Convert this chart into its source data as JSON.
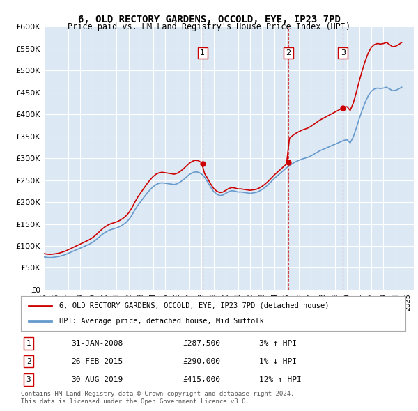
{
  "title": "6, OLD RECTORY GARDENS, OCCOLD, EYE, IP23 7PD",
  "subtitle": "Price paid vs. HM Land Registry's House Price Index (HPI)",
  "ylabel": "",
  "ylim": [
    0,
    600000
  ],
  "yticks": [
    0,
    50000,
    100000,
    150000,
    200000,
    250000,
    300000,
    350000,
    400000,
    450000,
    500000,
    550000,
    600000
  ],
  "ytick_labels": [
    "£0",
    "£50K",
    "£100K",
    "£150K",
    "£200K",
    "£250K",
    "£300K",
    "£350K",
    "£400K",
    "£450K",
    "£500K",
    "£550K",
    "£600K"
  ],
  "xlim_start": 1995.0,
  "xlim_end": 2025.5,
  "bg_color": "#dce9f5",
  "plot_bg_color": "#dce9f5",
  "grid_color": "#ffffff",
  "hpi_color": "#6699cc",
  "price_color": "#cc0000",
  "sale_marker_color": "#cc0000",
  "legend_house_label": "6, OLD RECTORY GARDENS, OCCOLD, EYE, IP23 7PD (detached house)",
  "legend_hpi_label": "HPI: Average price, detached house, Mid Suffolk",
  "sales": [
    {
      "num": 1,
      "date_x": 2008.08,
      "price": 287500,
      "label": "31-JAN-2008",
      "price_str": "£287,500",
      "hpi_pct": "3%",
      "hpi_dir": "↑"
    },
    {
      "num": 2,
      "date_x": 2015.16,
      "price": 290000,
      "label": "26-FEB-2015",
      "price_str": "£290,000",
      "hpi_pct": "1%",
      "hpi_dir": "↓"
    },
    {
      "num": 3,
      "date_x": 2019.66,
      "price": 415000,
      "label": "30-AUG-2019",
      "price_str": "£415,000",
      "hpi_pct": "12%",
      "hpi_dir": "↑"
    }
  ],
  "footer_line1": "Contains HM Land Registry data © Crown copyright and database right 2024.",
  "footer_line2": "This data is licensed under the Open Government Licence v3.0.",
  "hpi_data_x": [
    1995.0,
    1995.25,
    1995.5,
    1995.75,
    1996.0,
    1996.25,
    1996.5,
    1996.75,
    1997.0,
    1997.25,
    1997.5,
    1997.75,
    1998.0,
    1998.25,
    1998.5,
    1998.75,
    1999.0,
    1999.25,
    1999.5,
    1999.75,
    2000.0,
    2000.25,
    2000.5,
    2000.75,
    2001.0,
    2001.25,
    2001.5,
    2001.75,
    2002.0,
    2002.25,
    2002.5,
    2002.75,
    2003.0,
    2003.25,
    2003.5,
    2003.75,
    2004.0,
    2004.25,
    2004.5,
    2004.75,
    2005.0,
    2005.25,
    2005.5,
    2005.75,
    2006.0,
    2006.25,
    2006.5,
    2006.75,
    2007.0,
    2007.25,
    2007.5,
    2007.75,
    2008.0,
    2008.25,
    2008.5,
    2008.75,
    2009.0,
    2009.25,
    2009.5,
    2009.75,
    2010.0,
    2010.25,
    2010.5,
    2010.75,
    2011.0,
    2011.25,
    2011.5,
    2011.75,
    2012.0,
    2012.25,
    2012.5,
    2012.75,
    2013.0,
    2013.25,
    2013.5,
    2013.75,
    2014.0,
    2014.25,
    2014.5,
    2014.75,
    2015.0,
    2015.25,
    2015.5,
    2015.75,
    2016.0,
    2016.25,
    2016.5,
    2016.75,
    2017.0,
    2017.25,
    2017.5,
    2017.75,
    2018.0,
    2018.25,
    2018.5,
    2018.75,
    2019.0,
    2019.25,
    2019.5,
    2019.75,
    2020.0,
    2020.25,
    2020.5,
    2020.75,
    2021.0,
    2021.25,
    2021.5,
    2021.75,
    2022.0,
    2022.25,
    2022.5,
    2022.75,
    2023.0,
    2023.25,
    2023.5,
    2023.75,
    2024.0,
    2024.25,
    2024.5
  ],
  "hpi_data_y": [
    75000,
    74000,
    73500,
    74000,
    75000,
    76000,
    78000,
    80000,
    83000,
    86000,
    89000,
    92000,
    95000,
    98000,
    101000,
    104000,
    108000,
    113000,
    119000,
    125000,
    130000,
    134000,
    137000,
    139000,
    141000,
    144000,
    148000,
    153000,
    160000,
    170000,
    182000,
    193000,
    202000,
    211000,
    220000,
    228000,
    235000,
    240000,
    243000,
    244000,
    243000,
    242000,
    241000,
    240000,
    242000,
    246000,
    251000,
    257000,
    263000,
    267000,
    269000,
    268000,
    264000,
    257000,
    246000,
    234000,
    224000,
    218000,
    215000,
    216000,
    220000,
    224000,
    226000,
    225000,
    223000,
    223000,
    222000,
    221000,
    220000,
    221000,
    222000,
    225000,
    229000,
    234000,
    240000,
    247000,
    254000,
    260000,
    266000,
    272000,
    278000,
    283000,
    288000,
    292000,
    295000,
    298000,
    300000,
    302000,
    305000,
    309000,
    313000,
    317000,
    320000,
    323000,
    326000,
    329000,
    332000,
    335000,
    338000,
    341000,
    342000,
    335000,
    348000,
    368000,
    390000,
    410000,
    428000,
    443000,
    453000,
    458000,
    460000,
    459000,
    460000,
    462000,
    458000,
    454000,
    455000,
    458000,
    462000
  ]
}
